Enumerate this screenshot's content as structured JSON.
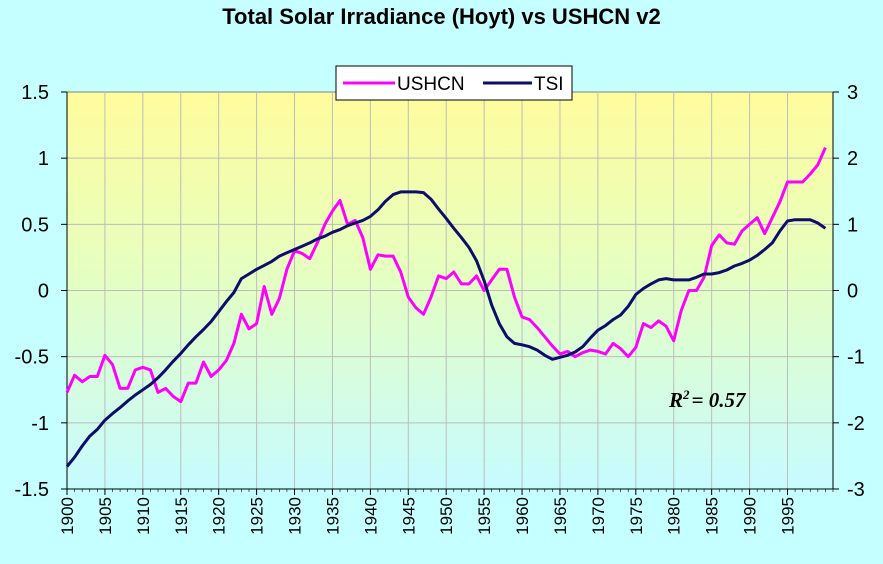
{
  "chart_data": {
    "type": "line",
    "title": "Total Solar Irradiance (Hoyt) vs USHCN v2",
    "annotation": {
      "r2_label": "R",
      "r2_sup": "2",
      "r2_value": "= 0.57"
    },
    "legend_placement": "top-center",
    "grid": true,
    "colors": {
      "USHCN": "#ff00ff",
      "TSI": "#0d0d6b"
    },
    "left_axis": {
      "ylim": [
        -1.5,
        1.5
      ],
      "ticks": [
        "1.5",
        "1",
        "0.5",
        "0",
        "-0.5",
        "-1",
        "-1.5"
      ]
    },
    "right_axis": {
      "ylim": [
        -3,
        3
      ],
      "ticks": [
        "3",
        "2",
        "1",
        "0",
        "-1",
        "-2",
        "-3"
      ]
    },
    "x_ticks": [
      "1900",
      "1905",
      "1910",
      "1915",
      "1920",
      "1925",
      "1930",
      "1935",
      "1940",
      "1945",
      "1950",
      "1955",
      "1960",
      "1965",
      "1970",
      "1975",
      "1980",
      "1985",
      "1990",
      "1995"
    ],
    "xlim": [
      1900,
      2001
    ],
    "series": [
      {
        "name": "USHCN",
        "axis": "left",
        "x": [
          1900,
          1901,
          1902,
          1903,
          1904,
          1905,
          1906,
          1907,
          1908,
          1909,
          1910,
          1911,
          1912,
          1913,
          1914,
          1915,
          1916,
          1917,
          1918,
          1919,
          1920,
          1921,
          1922,
          1923,
          1924,
          1925,
          1926,
          1927,
          1928,
          1929,
          1930,
          1931,
          1932,
          1933,
          1934,
          1935,
          1936,
          1937,
          1938,
          1939,
          1940,
          1941,
          1942,
          1943,
          1944,
          1945,
          1946,
          1947,
          1948,
          1949,
          1950,
          1951,
          1952,
          1953,
          1954,
          1955,
          1956,
          1957,
          1958,
          1959,
          1960,
          1961,
          1962,
          1963,
          1964,
          1965,
          1966,
          1967,
          1968,
          1969,
          1970,
          1971,
          1972,
          1973,
          1974,
          1975,
          1976,
          1977,
          1978,
          1979,
          1980,
          1981,
          1982,
          1983,
          1984,
          1985,
          1986,
          1987,
          1988,
          1989,
          1990,
          1991,
          1992,
          1993,
          1994,
          1995,
          1996,
          1997,
          1998,
          1999,
          2000
        ],
        "values": [
          -0.77,
          -0.64,
          -0.69,
          -0.65,
          -0.65,
          -0.49,
          -0.56,
          -0.74,
          -0.74,
          -0.6,
          -0.58,
          -0.6,
          -0.77,
          -0.74,
          -0.8,
          -0.84,
          -0.7,
          -0.7,
          -0.54,
          -0.65,
          -0.6,
          -0.53,
          -0.4,
          -0.18,
          -0.29,
          -0.25,
          0.03,
          -0.18,
          -0.06,
          0.16,
          0.3,
          0.28,
          0.24,
          0.36,
          0.5,
          0.6,
          0.68,
          0.5,
          0.53,
          0.4,
          0.16,
          0.27,
          0.26,
          0.26,
          0.14,
          -0.05,
          -0.13,
          -0.18,
          -0.05,
          0.11,
          0.09,
          0.14,
          0.05,
          0.05,
          0.11,
          0.0,
          0.08,
          0.16,
          0.16,
          -0.05,
          -0.2,
          -0.22,
          -0.28,
          -0.35,
          -0.42,
          -0.48,
          -0.46,
          -0.5,
          -0.47,
          -0.45,
          -0.46,
          -0.48,
          -0.4,
          -0.44,
          -0.5,
          -0.43,
          -0.25,
          -0.28,
          -0.23,
          -0.27,
          -0.38,
          -0.15,
          0.0,
          0.0,
          0.1,
          0.34,
          0.42,
          0.36,
          0.35,
          0.45,
          0.5,
          0.55,
          0.43,
          0.55,
          0.67,
          0.82,
          0.82,
          0.82,
          0.88,
          0.95,
          1.08
        ]
      },
      {
        "name": "TSI",
        "axis": "right",
        "x": [
          1900,
          1901,
          1902,
          1903,
          1904,
          1905,
          1906,
          1907,
          1908,
          1909,
          1910,
          1911,
          1912,
          1913,
          1914,
          1915,
          1916,
          1917,
          1918,
          1919,
          1920,
          1921,
          1922,
          1923,
          1924,
          1925,
          1926,
          1927,
          1928,
          1929,
          1930,
          1931,
          1932,
          1933,
          1934,
          1935,
          1936,
          1937,
          1938,
          1939,
          1940,
          1941,
          1942,
          1943,
          1944,
          1945,
          1946,
          1947,
          1948,
          1949,
          1950,
          1951,
          1952,
          1953,
          1954,
          1955,
          1956,
          1957,
          1958,
          1959,
          1960,
          1961,
          1962,
          1963,
          1964,
          1965,
          1966,
          1967,
          1968,
          1969,
          1970,
          1971,
          1972,
          1973,
          1974,
          1975,
          1976,
          1977,
          1978,
          1979,
          1980,
          1981,
          1982,
          1983,
          1984,
          1985,
          1986,
          1987,
          1988,
          1989,
          1990,
          1991,
          1992,
          1993,
          1994,
          1995,
          1996,
          1997,
          1998,
          1999,
          2000
        ],
        "values": [
          -2.66,
          -2.52,
          -2.35,
          -2.2,
          -2.1,
          -1.96,
          -1.86,
          -1.77,
          -1.67,
          -1.58,
          -1.5,
          -1.42,
          -1.32,
          -1.2,
          -1.07,
          -0.95,
          -0.82,
          -0.7,
          -0.59,
          -0.47,
          -0.32,
          -0.17,
          -0.03,
          0.18,
          0.25,
          0.32,
          0.38,
          0.44,
          0.52,
          0.57,
          0.62,
          0.67,
          0.72,
          0.78,
          0.82,
          0.88,
          0.92,
          0.98,
          1.02,
          1.06,
          1.12,
          1.22,
          1.35,
          1.45,
          1.49,
          1.49,
          1.49,
          1.48,
          1.38,
          1.23,
          1.09,
          0.94,
          0.8,
          0.65,
          0.45,
          0.15,
          -0.22,
          -0.5,
          -0.7,
          -0.8,
          -0.82,
          -0.85,
          -0.9,
          -0.98,
          -1.04,
          -1.01,
          -0.98,
          -0.93,
          -0.85,
          -0.72,
          -0.6,
          -0.53,
          -0.44,
          -0.37,
          -0.24,
          -0.06,
          0.03,
          0.1,
          0.16,
          0.18,
          0.16,
          0.16,
          0.16,
          0.2,
          0.25,
          0.25,
          0.27,
          0.31,
          0.37,
          0.41,
          0.46,
          0.53,
          0.62,
          0.72,
          0.9,
          1.05,
          1.07,
          1.07,
          1.07,
          1.02,
          0.94
        ]
      }
    ]
  }
}
